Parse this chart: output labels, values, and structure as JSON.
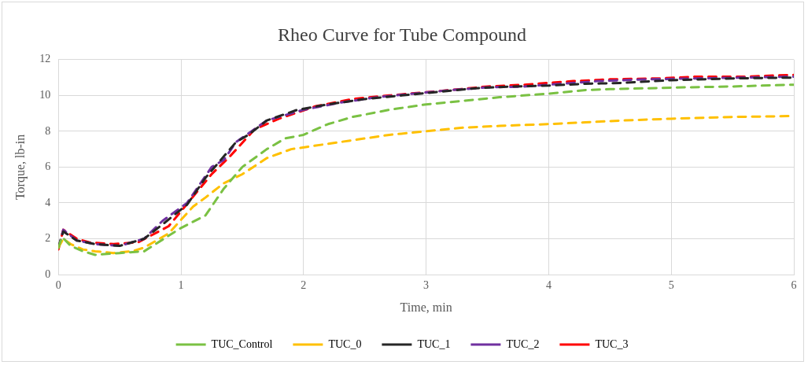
{
  "chart_data": {
    "type": "line",
    "title": "Rheo Curve for Tube Compound",
    "xlabel": "Time, min",
    "ylabel": "Torque, lb-in",
    "xlim": [
      0,
      6
    ],
    "xticks": [
      0,
      1,
      2,
      3,
      4,
      5,
      6
    ],
    "ylim": [
      0,
      12
    ],
    "yticks": [
      0,
      2,
      4,
      6,
      8,
      10,
      12
    ],
    "grid": true,
    "legend": "bottom",
    "marker": "none",
    "line_style": "dashed",
    "series": [
      {
        "name": "TUC_Control",
        "color": "#7ac143",
        "x": [
          0,
          0.03,
          0.1,
          0.2,
          0.3,
          0.5,
          0.7,
          1.0,
          1.2,
          1.35,
          1.5,
          1.7,
          1.85,
          2.0,
          2.2,
          2.4,
          2.7,
          3.0,
          3.3,
          3.6,
          4.0,
          4.3,
          4.5,
          4.8,
          5.1,
          5.5,
          6.0
        ],
        "values": [
          1.5,
          2.1,
          1.6,
          1.3,
          1.1,
          1.2,
          1.3,
          2.6,
          3.3,
          4.8,
          6.0,
          7.0,
          7.6,
          7.8,
          8.4,
          8.8,
          9.2,
          9.5,
          9.7,
          9.9,
          10.1,
          10.3,
          10.35,
          10.4,
          10.45,
          10.5,
          10.6
        ]
      },
      {
        "name": "TUC_0",
        "color": "#ffc000",
        "x": [
          0,
          0.04,
          0.1,
          0.2,
          0.3,
          0.45,
          0.6,
          0.7,
          0.9,
          1.1,
          1.2,
          1.35,
          1.5,
          1.7,
          1.9,
          2.2,
          2.5,
          2.7,
          3.0,
          3.3,
          3.6,
          4.0,
          4.3,
          4.6,
          5.0,
          5.5,
          6.0
        ],
        "values": [
          1.5,
          2.0,
          1.7,
          1.4,
          1.3,
          1.2,
          1.3,
          1.5,
          2.3,
          3.8,
          4.3,
          5.1,
          5.6,
          6.5,
          7.0,
          7.3,
          7.6,
          7.8,
          8.0,
          8.2,
          8.3,
          8.4,
          8.5,
          8.6,
          8.7,
          8.8,
          8.85
        ]
      },
      {
        "name": "TUC_1",
        "color": "#262626",
        "x": [
          0,
          0.04,
          0.15,
          0.3,
          0.5,
          0.7,
          0.85,
          1.05,
          1.2,
          1.3,
          1.45,
          1.55,
          1.7,
          1.95,
          2.2,
          2.5,
          2.8,
          3.1,
          3.4,
          3.7,
          4.0,
          4.3,
          4.6,
          5.0,
          5.5,
          6.0
        ],
        "values": [
          1.5,
          2.4,
          1.9,
          1.7,
          1.6,
          2.0,
          2.8,
          3.9,
          5.4,
          6.2,
          7.4,
          7.8,
          8.6,
          9.2,
          9.5,
          9.8,
          10.0,
          10.2,
          10.4,
          10.5,
          10.55,
          10.65,
          10.7,
          10.85,
          10.95,
          11.0
        ]
      },
      {
        "name": "TUC_2",
        "color": "#7030a0",
        "x": [
          0,
          0.04,
          0.15,
          0.3,
          0.5,
          0.7,
          0.85,
          1.05,
          1.25,
          1.35,
          1.45,
          1.7,
          2.0,
          2.3,
          2.6,
          2.9,
          3.2,
          3.5,
          3.8,
          4.0,
          4.4,
          4.8,
          5.2,
          5.6,
          6.0
        ],
        "values": [
          1.5,
          2.5,
          1.9,
          1.7,
          1.6,
          2.0,
          3.0,
          4.0,
          6.0,
          6.4,
          7.4,
          8.6,
          9.2,
          9.6,
          9.9,
          10.1,
          10.3,
          10.45,
          10.5,
          10.6,
          10.8,
          10.9,
          10.95,
          11.0,
          11.05
        ]
      },
      {
        "name": "TUC_3",
        "color": "#ff0000",
        "x": [
          0,
          0.04,
          0.15,
          0.25,
          0.45,
          0.65,
          0.9,
          1.25,
          1.4,
          1.6,
          1.8,
          2.1,
          2.4,
          2.7,
          3.2,
          3.5,
          3.8,
          4.2,
          4.5,
          4.9,
          5.2,
          5.6,
          6.0
        ],
        "values": [
          1.4,
          2.5,
          2.0,
          1.8,
          1.7,
          1.8,
          2.7,
          5.6,
          6.6,
          8.1,
          8.7,
          9.4,
          9.8,
          10.0,
          10.3,
          10.5,
          10.6,
          10.8,
          10.9,
          10.95,
          11.05,
          11.05,
          11.15
        ]
      }
    ]
  }
}
